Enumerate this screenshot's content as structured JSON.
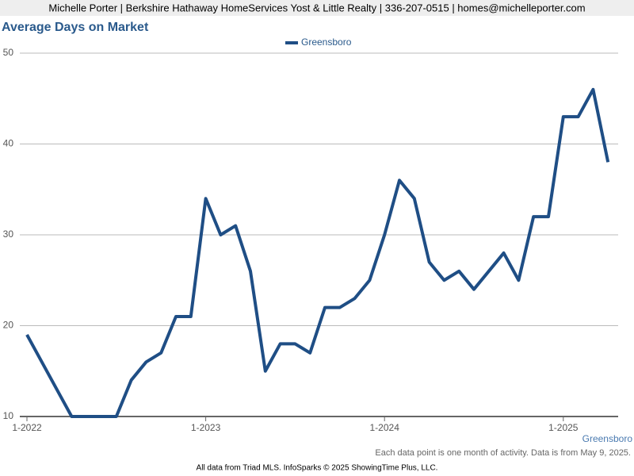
{
  "header": "Michelle Porter | Berkshire Hathaway HomeServices Yost & Little Realty | 336-207-0515 | homes@michelleporter.com",
  "chart_data": {
    "type": "line",
    "title": "Average Days on Market",
    "categories": [
      "1-2022",
      null,
      null,
      null,
      null,
      null,
      null,
      null,
      null,
      null,
      null,
      null,
      "1-2023",
      null,
      null,
      null,
      null,
      null,
      null,
      null,
      null,
      null,
      null,
      null,
      "1-2024",
      null,
      null,
      null,
      null,
      null,
      null,
      null,
      null,
      null,
      null,
      null,
      "1-2025",
      null,
      null,
      null
    ],
    "series": [
      {
        "name": "Greensboro",
        "color": "#1f4e85",
        "values": [
          19,
          16,
          13,
          10,
          10,
          10,
          10,
          14,
          16,
          17,
          21,
          21,
          34,
          30,
          31,
          26,
          15,
          18,
          18,
          17,
          22,
          22,
          23,
          25,
          30,
          36,
          34,
          27,
          25,
          26,
          24,
          26,
          28,
          25,
          32,
          32,
          43,
          43,
          46,
          38
        ]
      }
    ],
    "ylim": [
      10,
      50
    ],
    "yticks": [
      10,
      20,
      30,
      40,
      50
    ],
    "grid": true,
    "area_label": "Greensboro",
    "note": "Each data point is one month of activity. Data is from May 9, 2025.",
    "footer": "All data from Triad MLS. InfoSparks © 2025 ShowingTime Plus, LLC."
  }
}
